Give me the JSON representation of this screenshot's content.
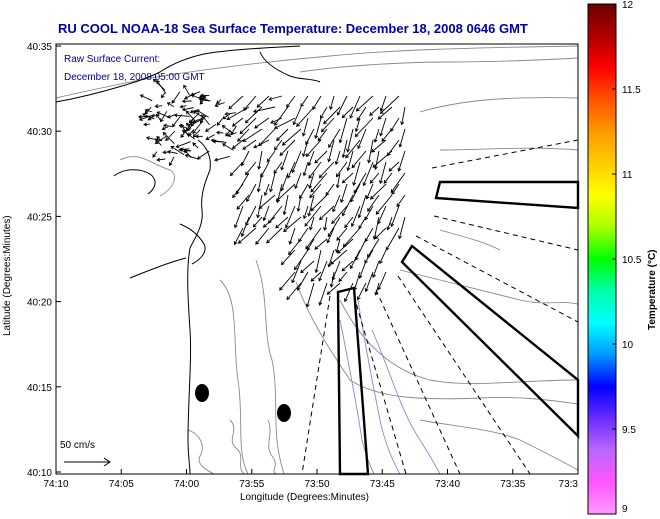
{
  "title": "RU COOL  NOAA-18  Sea Surface Temperature:  December 18, 2008 0646 GMT",
  "annotation": {
    "line1": "Raw Surface Current:",
    "line2": "December 18, 2008 05:00 GMT"
  },
  "scale_label": "50 cm/s",
  "axes": {
    "xlabel": "Longitude (Degrees:Minutes)",
    "ylabel": "Latitude (Degrees:Minutes)",
    "xticks": [
      "74:10",
      "74:05",
      "74:00",
      "73:55",
      "73:50",
      "73:45",
      "73:40",
      "73:35",
      "73:3"
    ],
    "yticks": [
      "40:35",
      "40:30",
      "40:25",
      "40:20",
      "40:15",
      "40:10"
    ]
  },
  "colorbar": {
    "label": "Temperature (°C)",
    "ticks": [
      "12",
      "11.5",
      "11",
      "10.5",
      "10",
      "9.5",
      "9"
    ],
    "colors": [
      "#6b0000",
      "#b00000",
      "#ff0000",
      "#ff5500",
      "#ff9900",
      "#ffcc00",
      "#ffff00",
      "#aaff00",
      "#00ff00",
      "#00ffaa",
      "#00ffff",
      "#0099ff",
      "#0000ff",
      "#6a2cff",
      "#bb66ff",
      "#ff55ff",
      "#ff99ff"
    ]
  },
  "colors": {
    "title": "#0000aa",
    "coast": "#000000",
    "bathymetry": "#888888",
    "channel": "#8888cc",
    "vectors": "#000000"
  },
  "markers": [
    "buoy-1",
    "buoy-2"
  ]
}
